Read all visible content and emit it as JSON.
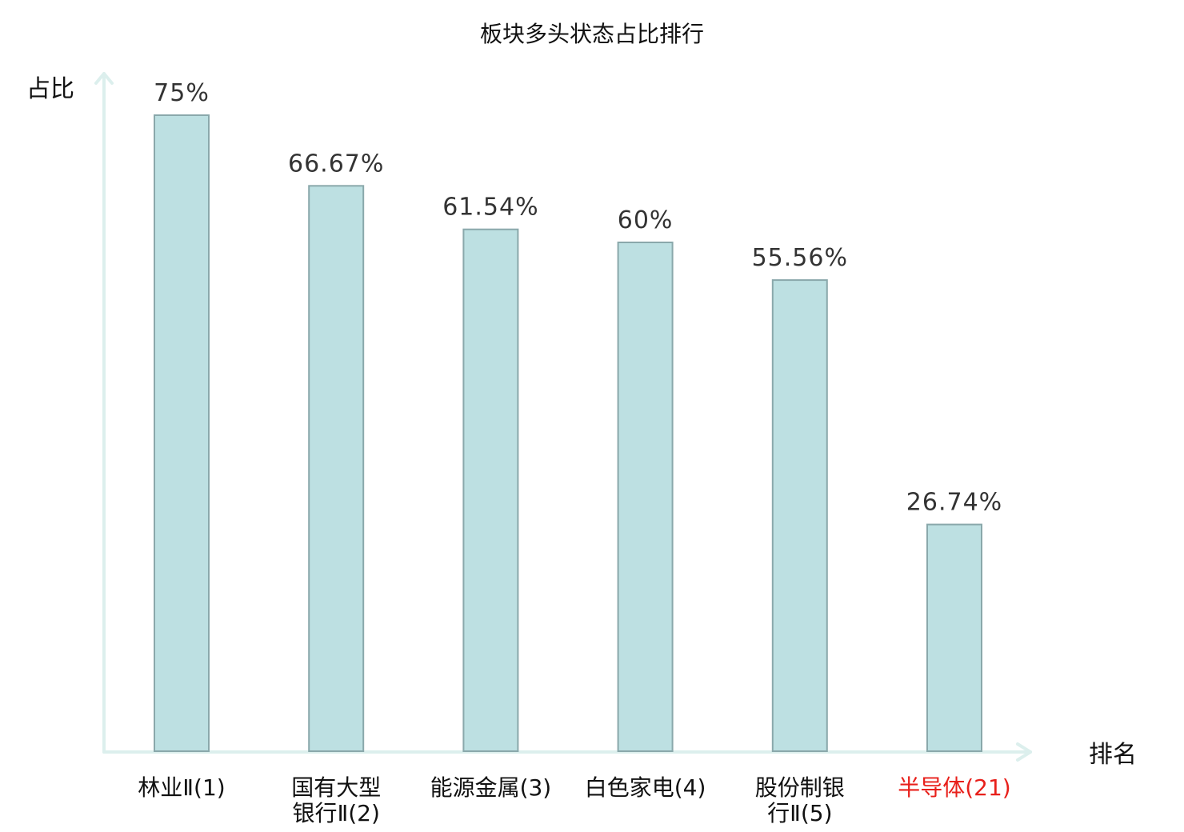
{
  "chart_data": {
    "type": "bar",
    "title": "板块多头状态占比排行",
    "ylabel": "占比",
    "xlabel": "排名",
    "categories": [
      [
        "林业Ⅱ(1)"
      ],
      [
        "国有大型",
        "银行Ⅱ(2)"
      ],
      [
        "能源金属(3)"
      ],
      [
        "白色家电(4)"
      ],
      [
        "股份制银",
        "行Ⅱ(5)"
      ],
      [
        "半导体(21)"
      ]
    ],
    "values": [
      75,
      66.67,
      61.54,
      60,
      55.56,
      26.74
    ],
    "value_labels": [
      "75%",
      "66.67%",
      "61.54%",
      "60%",
      "55.56%",
      "26.74%"
    ],
    "highlight_index": 5,
    "ylim": [
      0,
      75
    ],
    "grid": false,
    "legend": "none",
    "colors": {
      "bar_fill": "#bde0e2",
      "bar_stroke": "#8aa8ab",
      "axis": "#dcefed",
      "highlight_text": "#e8201b"
    }
  }
}
